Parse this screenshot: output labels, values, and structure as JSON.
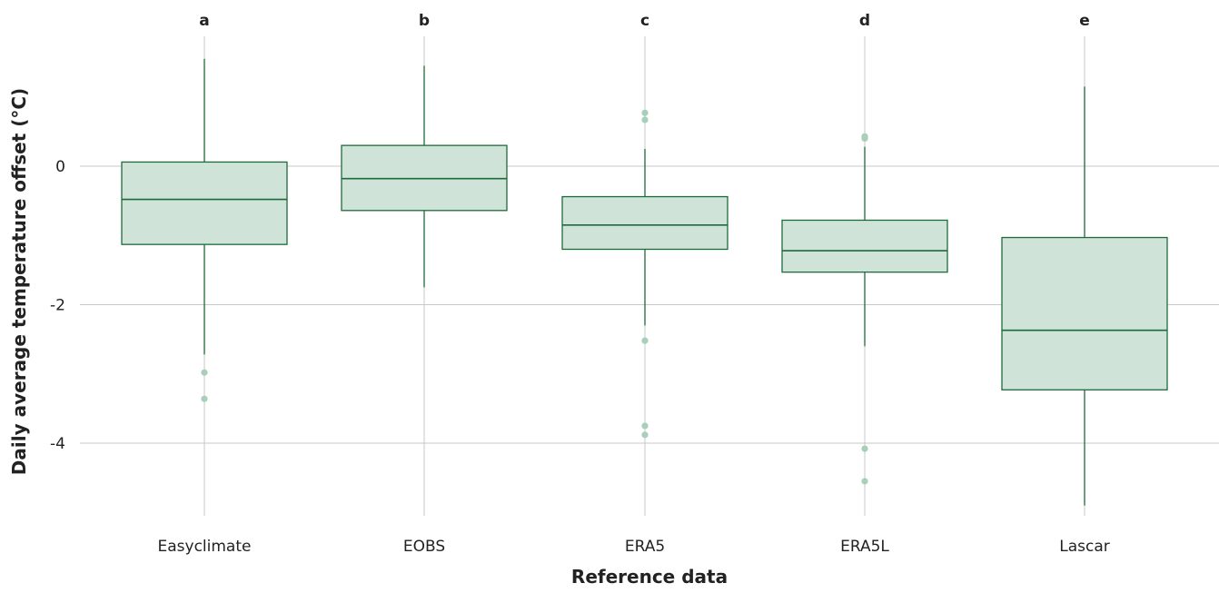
{
  "chart_data": {
    "type": "box",
    "xlabel": "Reference data",
    "ylabel": "Daily average temperature offset (°C)",
    "ylim": [
      -5.2,
      1.9
    ],
    "yticks": [
      0,
      -2,
      -4
    ],
    "grid": true,
    "colors": {
      "box_fill": "#cfe3d8",
      "box_stroke": "#1e6b3a",
      "outlier": "#a9cfbb",
      "grid": "#c8c8c8"
    },
    "categories": [
      "Easyclimate",
      "EOBS",
      "ERA5",
      "ERA5L",
      "Lascar"
    ],
    "significance_letters": [
      "a",
      "b",
      "c",
      "d",
      "e"
    ],
    "boxes": [
      {
        "category": "Easyclimate",
        "whisker_low": -2.72,
        "q1": -1.13,
        "median": -0.48,
        "q3": 0.06,
        "whisker_high": 1.55,
        "outliers": [
          -2.98,
          -3.36
        ]
      },
      {
        "category": "EOBS",
        "whisker_low": -1.75,
        "q1": -0.64,
        "median": -0.18,
        "q3": 0.3,
        "whisker_high": 1.45,
        "outliers": []
      },
      {
        "category": "ERA5",
        "whisker_low": -2.3,
        "q1": -1.2,
        "median": -0.85,
        "q3": -0.44,
        "whisker_high": 0.25,
        "outliers": [
          0.77,
          0.67,
          -2.52,
          -3.75,
          -3.88
        ]
      },
      {
        "category": "ERA5L",
        "whisker_low": -2.6,
        "q1": -1.53,
        "median": -1.22,
        "q3": -0.78,
        "whisker_high": 0.28,
        "outliers": [
          0.43,
          0.4,
          -4.08,
          -4.55
        ]
      },
      {
        "category": "Lascar",
        "whisker_low": -4.9,
        "q1": -3.23,
        "median": -2.37,
        "q3": -1.03,
        "whisker_high": 1.15,
        "outliers": []
      }
    ]
  }
}
